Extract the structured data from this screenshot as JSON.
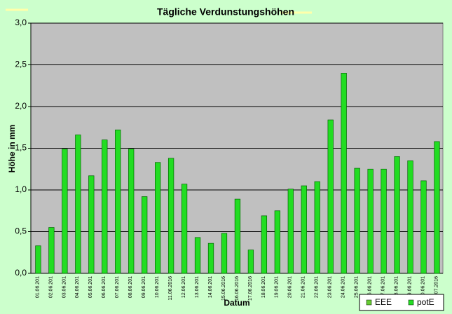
{
  "chart_data": {
    "type": "bar",
    "title": "Tägliche Verdunstungshöhen",
    "y_label": "Höhe in mm",
    "x_label": "Datum",
    "categories": [
      "01.06.201",
      "02.06.201",
      "03.06.201",
      "04.06.201",
      "05.06.201",
      "06.06.201",
      "07.06.201",
      "08.06.201",
      "09.06.201",
      "10.06.201",
      "11.06.2016",
      "12.06.201",
      "13.06.201",
      "14.06.201",
      "15.06.2016",
      "16.06.2016",
      "17.06.2016",
      "18.06.201",
      "19.06.201",
      "20.06.201",
      "21.06.201",
      "22.06.201",
      "23.06.201",
      "24.06.201",
      "25.06.201",
      "26.06.201",
      "27.06.201",
      "28.06.201",
      "29.06.201",
      "30.06.201",
      "01.07.2016"
    ],
    "series": [
      {
        "name": "EEE",
        "color": "#66cc33",
        "values": [
          null,
          null,
          null,
          null,
          null,
          null,
          null,
          null,
          null,
          null,
          null,
          null,
          null,
          null,
          null,
          null,
          null,
          null,
          null,
          null,
          null,
          null,
          null,
          null,
          null,
          null,
          null,
          null,
          null,
          null,
          null
        ]
      },
      {
        "name": "potE",
        "color": "#22dd22",
        "values": [
          0.33,
          0.55,
          1.49,
          1.66,
          1.17,
          1.6,
          1.72,
          1.49,
          0.92,
          1.33,
          1.38,
          1.07,
          0.43,
          0.36,
          0.48,
          0.89,
          0.28,
          0.69,
          0.75,
          1.01,
          1.05,
          1.1,
          1.84,
          2.4,
          1.26,
          1.25,
          1.25,
          1.4,
          1.35,
          1.11,
          1.58
        ]
      }
    ],
    "ylim": [
      0,
      3
    ],
    "yticks": [
      {
        "value": 0,
        "label": "0,0"
      },
      {
        "value": 0.5,
        "label": "0,5"
      },
      {
        "value": 1,
        "label": "1,0"
      },
      {
        "value": 1.5,
        "label": "1,5"
      },
      {
        "value": 2,
        "label": "2,0"
      },
      {
        "value": 2.5,
        "label": "2,5"
      },
      {
        "value": 3,
        "label": "3,0"
      }
    ],
    "grid": true,
    "legend": "bottom-right"
  }
}
